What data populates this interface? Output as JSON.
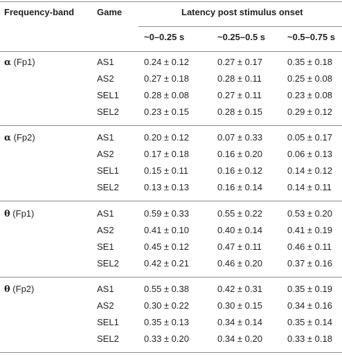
{
  "header": {
    "col_band": "Frequency-band",
    "col_game": "Game",
    "col_latency": "Latency post stimulus onset",
    "latency_windows": [
      "~0–0.25 s",
      "~0.25–0.5 s",
      "~0.5–0.75 s"
    ]
  },
  "groups": [
    {
      "greek": "α",
      "channel": "(Fp1)",
      "rows": [
        {
          "game": "AS1",
          "v": [
            "0.24 ± 0.12",
            "0.27 ± 0.17",
            "0.35 ± 0.18"
          ]
        },
        {
          "game": "AS2",
          "v": [
            "0.27 ± 0.18",
            "0.28 ± 0.11",
            "0.25 ± 0.08"
          ]
        },
        {
          "game": "SEL1",
          "v": [
            "0.28 ± 0.08",
            "0.27 ± 0.11",
            "0.23 ± 0.08"
          ]
        },
        {
          "game": "SEL2",
          "v": [
            "0.23 ± 0.15",
            "0.28 ± 0.15",
            "0.29 ± 0.12"
          ]
        }
      ]
    },
    {
      "greek": "α",
      "channel": "(Fp2)",
      "rows": [
        {
          "game": "AS1",
          "v": [
            "0.20 ± 0.12",
            "0.07 ± 0.33",
            "0.05 ± 0.17"
          ]
        },
        {
          "game": "AS2",
          "v": [
            "0.17 ± 0.18",
            "0.16 ± 0.20",
            "0.06 ± 0.13"
          ]
        },
        {
          "game": "SEL1",
          "v": [
            "0.15 ± 0.11",
            "0.16 ± 0.12",
            "0.14 ± 0.12"
          ]
        },
        {
          "game": "SEL2",
          "v": [
            "0.13 ± 0.13",
            "0.16 ± 0.14",
            "0.14 ± 0.11"
          ]
        }
      ]
    },
    {
      "greek": "θ",
      "channel": "(Fp1)",
      "rows": [
        {
          "game": "AS1",
          "v": [
            "0.59 ± 0.33",
            "0.55 ± 0.22",
            "0.53 ± 0.20"
          ]
        },
        {
          "game": "AS2",
          "v": [
            "0.41 ± 0.10",
            "0.40 ± 0.14",
            "0.41 ± 0.19"
          ]
        },
        {
          "game": "SE1",
          "v": [
            "0.45 ± 0.12",
            "0.47 ± 0.11",
            "0.46 ± 0.11"
          ]
        },
        {
          "game": "SEL2",
          "v": [
            "0.42 ± 0.21",
            "0.46 ± 0.20",
            "0.37 ± 0.16"
          ]
        }
      ]
    },
    {
      "greek": "θ",
      "channel": "(Fp2)",
      "rows": [
        {
          "game": "AS1",
          "v": [
            "0.55 ± 0.38",
            "0.42 ± 0.31",
            "0.35 ± 0.19"
          ]
        },
        {
          "game": "AS2",
          "v": [
            "0.30 ± 0.22",
            "0.30 ± 0.15",
            "0.34 ± 0.16"
          ]
        },
        {
          "game": "SEL1",
          "v": [
            "0.35 ± 0.13",
            "0.34 ± 0.14",
            "0.35 ± 0.14"
          ]
        },
        {
          "game": "SEL2",
          "v": [
            "0.33 ± 0.20",
            "0.34 ± 0.20",
            "0.33 ± 0.18"
          ]
        }
      ]
    }
  ]
}
